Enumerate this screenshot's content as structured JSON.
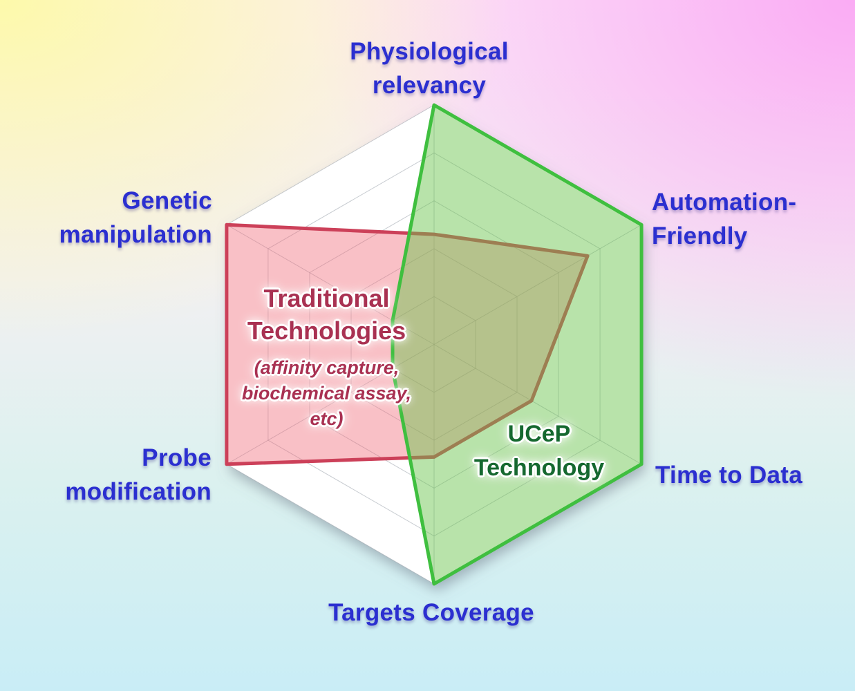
{
  "chart_data": {
    "type": "radar",
    "axes": [
      "Physiological relevancy",
      "Automation-Friendly",
      "Time to Data",
      "Targets Coverage",
      "Probe modification",
      "Genetic manipulation"
    ],
    "max": 5,
    "rings": 5,
    "grid_color": "#9aa2ac",
    "plate_color": "#ffffff",
    "series": [
      {
        "name": "Traditional Technologies",
        "caption": "(affinity capture, biochemical assay, etc)",
        "values": [
          2.3,
          3.7,
          2.35,
          2.35,
          5,
          5
        ],
        "fill": "#f06978",
        "fill_opacity": 0.42,
        "stroke": "#cc4059"
      },
      {
        "name": "UCeP Technology",
        "values": [
          5,
          5,
          5,
          5,
          1,
          1
        ],
        "fill": "#69c34b",
        "fill_opacity": 0.47,
        "stroke": "#3fbf3f"
      }
    ],
    "legend_position": "inside-plot",
    "axis_label_color": "#2b2fd0"
  },
  "labels": {
    "physiological": "Physiological\nrelevancy",
    "automation": "Automation-\nFriendly",
    "time": "Time to Data",
    "targets": "Targets Coverage",
    "probe": "Probe\nmodification",
    "genetic": "Genetic\nmanipulation"
  },
  "series_labels": {
    "traditional_title": "Traditional\nTechnologies",
    "traditional_caption": "(affinity capture,\nbiochemical assay,\netc)",
    "ucep": "UCeP\nTechnology"
  }
}
